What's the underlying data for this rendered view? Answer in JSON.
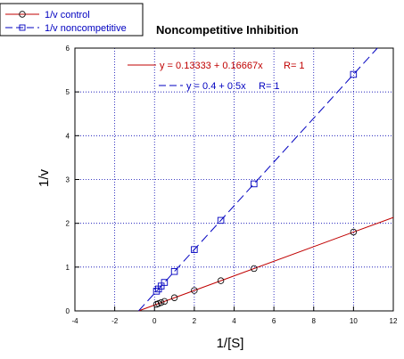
{
  "chart_data": {
    "type": "scatter",
    "title": "Noncompetitive Inhibition",
    "xlabel": "1/[S]",
    "ylabel": "1/v",
    "xlim": [
      -4,
      12
    ],
    "ylim": [
      0,
      6
    ],
    "xticks": [
      "-4",
      "-2",
      "0",
      "2",
      "4",
      "6",
      "8",
      "10",
      "12"
    ],
    "yticks": [
      "0",
      "1",
      "2",
      "3",
      "4",
      "5",
      "6"
    ],
    "grid": true,
    "legend_position": "top-left",
    "series": [
      {
        "name": "1/v control",
        "color": "#c00000",
        "marker": "circle",
        "line_style": "solid",
        "points": [
          [
            0.1,
            0.15
          ],
          [
            0.2,
            0.167
          ],
          [
            0.333,
            0.19
          ],
          [
            0.5,
            0.217
          ],
          [
            1,
            0.3
          ],
          [
            2,
            0.467
          ],
          [
            3.333,
            0.689
          ],
          [
            5,
            0.967
          ],
          [
            10,
            1.8
          ]
        ],
        "fit": {
          "equation": "y = 0.13333 + 0.16667x",
          "r_label": "R= 1",
          "intercept": 0.13333,
          "slope": 0.16667
        }
      },
      {
        "name": "1/v noncompetitive",
        "color": "#0000c0",
        "marker": "square",
        "line_style": "dash",
        "points": [
          [
            0.1,
            0.45
          ],
          [
            0.2,
            0.5
          ],
          [
            0.333,
            0.567
          ],
          [
            0.5,
            0.65
          ],
          [
            1,
            0.9
          ],
          [
            2,
            1.4
          ],
          [
            3.333,
            2.067
          ],
          [
            5,
            2.9
          ],
          [
            10,
            5.4
          ]
        ],
        "fit": {
          "equation": "y = 0.4 + 0.5x",
          "r_label": "R= 1",
          "intercept": 0.4,
          "slope": 0.5
        }
      }
    ]
  }
}
